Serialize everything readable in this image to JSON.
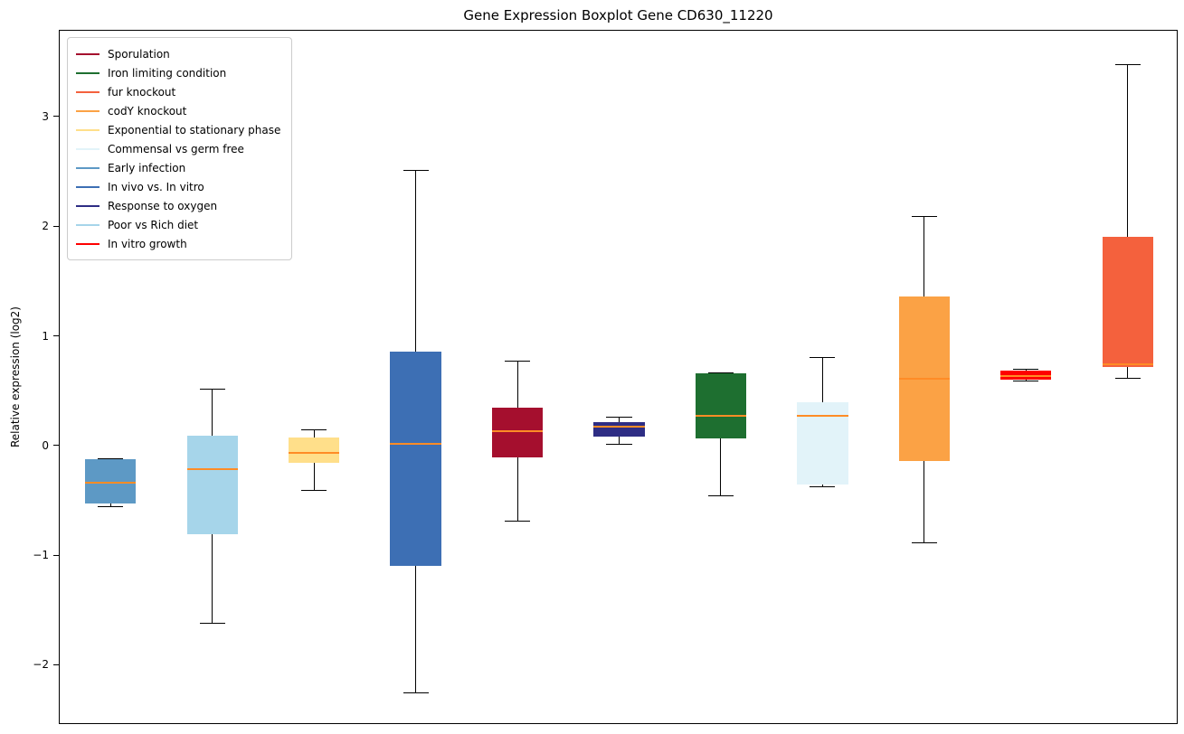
{
  "chart_data": {
    "type": "boxplot",
    "title": "Gene Expression Boxplot Gene CD630_11220",
    "ylabel": "Relative expression (log2)",
    "xlabel": "",
    "ylim": [
      -2.54,
      3.79
    ],
    "yticks": [
      -2,
      -1,
      0,
      1,
      2,
      3
    ],
    "grid": false,
    "legend_position": "upper left",
    "colors": {
      "median": "#ff8c26",
      "axis": "#000000",
      "whisker": "#000000",
      "legend_border": "#cccccc",
      "background": "#ffffff"
    },
    "legend": [
      {
        "label": "Sporulation",
        "color": "#a50f2e"
      },
      {
        "label": "Iron limiting condition",
        "color": "#1e6f30"
      },
      {
        "label": "fur knockout",
        "color": "#f4613d"
      },
      {
        "label": "codY knockout",
        "color": "#fba245"
      },
      {
        "label": "Exponential to stationary phase",
        "color": "#ffdf8a"
      },
      {
        "label": "Commensal vs germ free",
        "color": "#e2f3f9"
      },
      {
        "label": "Early infection",
        "color": "#5d99c5"
      },
      {
        "label": "In vivo vs. In vitro",
        "color": "#3d6fb4"
      },
      {
        "label": "Response to oxygen",
        "color": "#2e2d84"
      },
      {
        "label": "Poor vs Rich diet",
        "color": "#a6d5ea"
      },
      {
        "label": "In vitro growth",
        "color": "#fe0000"
      }
    ],
    "series": [
      {
        "name": "Early infection",
        "color": "#5d99c5",
        "whisker_low": -0.55,
        "q1": -0.52,
        "median": -0.33,
        "q3": -0.12,
        "whisker_high": -0.11
      },
      {
        "name": "Poor vs Rich diet",
        "color": "#a6d5ea",
        "whisker_low": -1.61,
        "q1": -0.8,
        "median": -0.21,
        "q3": 0.1,
        "whisker_high": 0.52
      },
      {
        "name": "Exponential to stationary phase",
        "color": "#ffdf8a",
        "whisker_low": -0.4,
        "q1": -0.15,
        "median": -0.06,
        "q3": 0.08,
        "whisker_high": 0.15
      },
      {
        "name": "In vivo vs. In vitro",
        "color": "#3d6fb4",
        "whisker_low": -2.25,
        "q1": -1.09,
        "median": 0.02,
        "q3": 0.86,
        "whisker_high": 2.52
      },
      {
        "name": "Sporulation",
        "color": "#a50f2e",
        "whisker_low": -0.68,
        "q1": -0.1,
        "median": 0.14,
        "q3": 0.35,
        "whisker_high": 0.78
      },
      {
        "name": "Response to oxygen",
        "color": "#2e2d84",
        "whisker_low": 0.02,
        "q1": 0.09,
        "median": 0.18,
        "q3": 0.22,
        "whisker_high": 0.27
      },
      {
        "name": "Iron limiting condition",
        "color": "#1e6f30",
        "whisker_low": -0.45,
        "q1": 0.07,
        "median": 0.28,
        "q3": 0.67,
        "whisker_high": 0.67
      },
      {
        "name": "Commensal vs germ free",
        "color": "#e2f3f9",
        "whisker_low": -0.37,
        "q1": -0.35,
        "median": 0.28,
        "q3": 0.4,
        "whisker_high": 0.81
      },
      {
        "name": "codY knockout",
        "color": "#fba245",
        "whisker_low": -0.88,
        "q1": -0.13,
        "median": 0.62,
        "q3": 1.37,
        "whisker_high": 2.1
      },
      {
        "name": "In vitro growth",
        "color": "#fe0000",
        "whisker_low": 0.6,
        "q1": 0.61,
        "median": 0.645,
        "q3": 0.69,
        "whisker_high": 0.7
      },
      {
        "name": "fur knockout",
        "color": "#f4613d",
        "whisker_low": 0.62,
        "q1": 0.72,
        "median": 0.745,
        "q3": 1.91,
        "whisker_high": 3.48
      }
    ]
  }
}
